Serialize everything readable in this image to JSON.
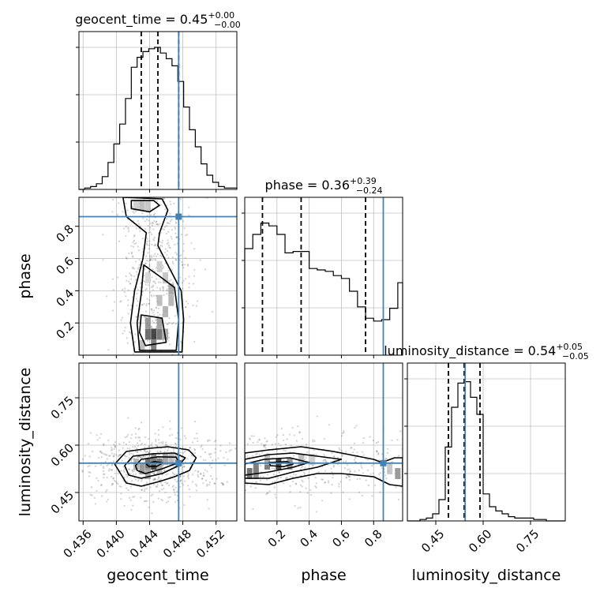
{
  "chart_data": {
    "type": "corner",
    "colors": {
      "truth": "#4682b4",
      "hist": "#000000",
      "grid": "#c0c0c0",
      "quantile": "#000000"
    },
    "parameters": [
      {
        "name": "geocent_time",
        "xlabel": "geocent_time",
        "ylabel": "",
        "title_main": "geocent_time = 0.45",
        "title_plus": "+0.00",
        "title_minus": "−0.00",
        "range": [
          0.4355,
          0.4545
        ],
        "ticks": [
          0.436,
          0.44,
          0.444,
          0.448,
          0.452
        ],
        "tick_labels": [
          "0.436",
          "0.440",
          "0.444",
          "0.448",
          "0.452"
        ],
        "truth": 0.4475,
        "quantiles": [
          0.443,
          0.445,
          0.4475
        ],
        "hist_edges": [
          0.4355,
          0.4362,
          0.4369,
          0.4376,
          0.4383,
          0.439,
          0.4397,
          0.4404,
          0.4411,
          0.4418,
          0.4425,
          0.4432,
          0.4439,
          0.4446,
          0.4453,
          0.446,
          0.4467,
          0.4474,
          0.4481,
          0.4488,
          0.4495,
          0.4502,
          0.4509,
          0.4516,
          0.4523,
          0.453,
          0.4545
        ],
        "hist_values": [
          0,
          0.01,
          0.02,
          0.04,
          0.09,
          0.19,
          0.32,
          0.46,
          0.64,
          0.86,
          0.93,
          0.97,
          0.99,
          1.0,
          0.96,
          0.92,
          0.87,
          0.76,
          0.58,
          0.42,
          0.3,
          0.18,
          0.1,
          0.05,
          0.02,
          0.01
        ]
      },
      {
        "name": "phase",
        "xlabel": "phase",
        "ylabel": "phase",
        "title_main": "phase = 0.36",
        "title_plus": "+0.39",
        "title_minus": "−0.24",
        "range": [
          0.0,
          0.98
        ],
        "ticks": [
          0.2,
          0.4,
          0.6,
          0.8
        ],
        "tick_labels": [
          "0.2",
          "0.4",
          "0.6",
          "0.8"
        ],
        "truth": 0.86,
        "quantiles": [
          0.11,
          0.35,
          0.75
        ],
        "hist_edges": [
          0.0,
          0.05,
          0.1,
          0.15,
          0.2,
          0.25,
          0.3,
          0.35,
          0.4,
          0.45,
          0.5,
          0.55,
          0.6,
          0.65,
          0.7,
          0.75,
          0.8,
          0.85,
          0.9,
          0.95,
          0.98
        ],
        "hist_values": [
          0.75,
          0.85,
          0.93,
          0.91,
          0.85,
          0.72,
          0.73,
          0.73,
          0.61,
          0.6,
          0.59,
          0.56,
          0.54,
          0.45,
          0.34,
          0.26,
          0.24,
          0.25,
          0.33,
          0.51
        ]
      },
      {
        "name": "luminosity_distance",
        "xlabel": "luminosity_distance",
        "ylabel": "luminosity_distance",
        "title_main": "luminosity_distance = 0.54",
        "title_plus": "+0.05",
        "title_minus": "−0.05",
        "range": [
          0.36,
          0.86
        ],
        "ticks": [
          0.45,
          0.6,
          0.75
        ],
        "tick_labels": [
          "0.45",
          "0.60",
          "0.75"
        ],
        "truth": 0.543,
        "quantiles": [
          0.49,
          0.54,
          0.59
        ],
        "hist_edges": [
          0.36,
          0.38,
          0.4,
          0.42,
          0.44,
          0.46,
          0.48,
          0.5,
          0.52,
          0.54,
          0.56,
          0.58,
          0.6,
          0.62,
          0.64,
          0.66,
          0.68,
          0.7,
          0.72,
          0.74,
          0.76,
          0.78,
          0.8,
          0.82,
          0.86
        ],
        "hist_values": [
          0,
          0,
          0.01,
          0.02,
          0.05,
          0.15,
          0.52,
          0.8,
          0.97,
          0.98,
          0.87,
          0.75,
          0.19,
          0.1,
          0.07,
          0.05,
          0.03,
          0.02,
          0.02,
          0.02,
          0.01,
          0.01,
          0,
          0
        ]
      }
    ],
    "contours_2d": [
      {
        "x_param": "geocent_time",
        "y_param": "phase",
        "levels": [
          [
            [
              0.4418,
              0.96
            ],
            [
              0.4445,
              0.96
            ],
            [
              0.4452,
              0.93
            ],
            [
              0.444,
              0.89
            ],
            [
              0.4418,
              0.91
            ]
          ],
          [
            [
              0.4408,
              0.98
            ],
            [
              0.4455,
              0.97
            ],
            [
              0.4462,
              0.9
            ],
            [
              0.4452,
              0.76
            ],
            [
              0.445,
              0.68
            ],
            [
              0.4462,
              0.56
            ],
            [
              0.4478,
              0.4
            ],
            [
              0.4481,
              0.22
            ],
            [
              0.4479,
              0.02
            ],
            [
              0.4422,
              0.02
            ],
            [
              0.4417,
              0.2
            ],
            [
              0.4422,
              0.4
            ],
            [
              0.4432,
              0.6
            ],
            [
              0.4436,
              0.76
            ],
            [
              0.4412,
              0.86
            ]
          ],
          [
            [
              0.4433,
              0.56
            ],
            [
              0.4452,
              0.49
            ],
            [
              0.447,
              0.42
            ],
            [
              0.4475,
              0.22
            ],
            [
              0.4472,
              0.03
            ],
            [
              0.4428,
              0.03
            ],
            [
              0.4425,
              0.2
            ],
            [
              0.443,
              0.38
            ]
          ],
          [
            [
              0.443,
              0.25
            ],
            [
              0.4455,
              0.23
            ],
            [
              0.446,
              0.08
            ],
            [
              0.4435,
              0.06
            ],
            [
              0.4428,
              0.14
            ]
          ]
        ],
        "density_cells": [
          {
            "x": 0.4445,
            "y": 0.13,
            "v": 1.0
          },
          {
            "x": 0.4438,
            "y": 0.13,
            "v": 0.78
          },
          {
            "x": 0.4452,
            "y": 0.13,
            "v": 0.72
          },
          {
            "x": 0.4445,
            "y": 0.06,
            "v": 0.7
          },
          {
            "x": 0.4438,
            "y": 0.2,
            "v": 0.55
          },
          {
            "x": 0.4452,
            "y": 0.2,
            "v": 0.5
          },
          {
            "x": 0.4459,
            "y": 0.13,
            "v": 0.45
          },
          {
            "x": 0.4459,
            "y": 0.27,
            "v": 0.4
          },
          {
            "x": 0.4466,
            "y": 0.34,
            "v": 0.38
          },
          {
            "x": 0.4466,
            "y": 0.41,
            "v": 0.45
          },
          {
            "x": 0.4459,
            "y": 0.48,
            "v": 0.3
          },
          {
            "x": 0.4452,
            "y": 0.34,
            "v": 0.35
          },
          {
            "x": 0.4431,
            "y": 0.06,
            "v": 0.35
          },
          {
            "x": 0.4438,
            "y": 0.48,
            "v": 0.2
          },
          {
            "x": 0.4452,
            "y": 0.55,
            "v": 0.25
          },
          {
            "x": 0.4431,
            "y": 0.93,
            "v": 0.35
          },
          {
            "x": 0.4438,
            "y": 0.93,
            "v": 0.3
          },
          {
            "x": 0.4424,
            "y": 0.93,
            "v": 0.25
          }
        ]
      },
      {
        "x_param": "geocent_time",
        "y_param": "luminosity_distance",
        "levels": [
          [
            [
              0.4398,
              0.54
            ],
            [
              0.4412,
              0.58
            ],
            [
              0.444,
              0.59
            ],
            [
              0.4462,
              0.595
            ],
            [
              0.4487,
              0.585
            ],
            [
              0.4496,
              0.56
            ],
            [
              0.4488,
              0.52
            ],
            [
              0.447,
              0.5
            ],
            [
              0.4452,
              0.485
            ],
            [
              0.443,
              0.47
            ],
            [
              0.4412,
              0.48
            ]
          ],
          [
            [
              0.441,
              0.535
            ],
            [
              0.442,
              0.565
            ],
            [
              0.4445,
              0.573
            ],
            [
              0.447,
              0.575
            ],
            [
              0.4483,
              0.56
            ],
            [
              0.4475,
              0.535
            ],
            [
              0.4455,
              0.51
            ],
            [
              0.443,
              0.495
            ],
            [
              0.4415,
              0.505
            ]
          ],
          [
            [
              0.4423,
              0.535
            ],
            [
              0.443,
              0.555
            ],
            [
              0.445,
              0.563
            ],
            [
              0.4472,
              0.562
            ],
            [
              0.4475,
              0.545
            ],
            [
              0.4455,
              0.525
            ],
            [
              0.4435,
              0.51
            ],
            [
              0.4425,
              0.52
            ]
          ],
          [
            [
              0.4436,
              0.54
            ],
            [
              0.4446,
              0.548
            ],
            [
              0.4456,
              0.544
            ],
            [
              0.4449,
              0.533
            ],
            [
              0.4439,
              0.533
            ]
          ]
        ],
        "density_cells": [
          {
            "x": 0.4445,
            "y": 0.54,
            "v": 1.0
          },
          {
            "x": 0.4438,
            "y": 0.54,
            "v": 0.75
          },
          {
            "x": 0.4452,
            "y": 0.54,
            "v": 0.7
          },
          {
            "x": 0.4459,
            "y": 0.555,
            "v": 0.45
          },
          {
            "x": 0.4466,
            "y": 0.555,
            "v": 0.35
          },
          {
            "x": 0.4431,
            "y": 0.525,
            "v": 0.55
          },
          {
            "x": 0.4438,
            "y": 0.51,
            "v": 0.45
          },
          {
            "x": 0.4452,
            "y": 0.525,
            "v": 0.35
          },
          {
            "x": 0.4424,
            "y": 0.54,
            "v": 0.4
          },
          {
            "x": 0.4473,
            "y": 0.555,
            "v": 0.3
          },
          {
            "x": 0.4445,
            "y": 0.555,
            "v": 0.55
          }
        ]
      },
      {
        "x_param": "phase",
        "y_param": "luminosity_distance",
        "levels": [
          [
            [
              0.0,
              0.575
            ],
            [
              0.15,
              0.585
            ],
            [
              0.35,
              0.595
            ],
            [
              0.55,
              0.58
            ],
            [
              0.7,
              0.565
            ],
            [
              0.8,
              0.555
            ],
            [
              0.85,
              0.545
            ],
            [
              0.93,
              0.56
            ],
            [
              0.98,
              0.56
            ],
            [
              0.98,
              0.47
            ],
            [
              0.9,
              0.475
            ],
            [
              0.8,
              0.5
            ],
            [
              0.6,
              0.51
            ],
            [
              0.45,
              0.51
            ],
            [
              0.3,
              0.495
            ],
            [
              0.15,
              0.475
            ],
            [
              0.0,
              0.48
            ]
          ],
          [
            [
              0.0,
              0.555
            ],
            [
              0.15,
              0.57
            ],
            [
              0.3,
              0.575
            ],
            [
              0.45,
              0.565
            ],
            [
              0.6,
              0.555
            ],
            [
              0.45,
              0.53
            ],
            [
              0.3,
              0.515
            ],
            [
              0.15,
              0.495
            ],
            [
              0.0,
              0.495
            ]
          ],
          [
            [
              0.0,
              0.54
            ],
            [
              0.12,
              0.555
            ],
            [
              0.28,
              0.56
            ],
            [
              0.4,
              0.545
            ],
            [
              0.3,
              0.53
            ],
            [
              0.15,
              0.515
            ],
            [
              0.0,
              0.505
            ]
          ],
          [
            [
              0.15,
              0.545
            ],
            [
              0.26,
              0.548
            ],
            [
              0.3,
              0.54
            ],
            [
              0.24,
              0.532
            ],
            [
              0.16,
              0.535
            ]
          ]
        ],
        "density_cells": [
          {
            "x": 0.21,
            "y": 0.54,
            "v": 1.0
          },
          {
            "x": 0.14,
            "y": 0.54,
            "v": 0.7
          },
          {
            "x": 0.07,
            "y": 0.525,
            "v": 0.7
          },
          {
            "x": 0.03,
            "y": 0.51,
            "v": 0.75
          },
          {
            "x": 0.28,
            "y": 0.54,
            "v": 0.55
          },
          {
            "x": 0.35,
            "y": 0.555,
            "v": 0.35
          },
          {
            "x": 0.42,
            "y": 0.555,
            "v": 0.25
          },
          {
            "x": 0.14,
            "y": 0.555,
            "v": 0.35
          },
          {
            "x": 0.07,
            "y": 0.51,
            "v": 0.6
          },
          {
            "x": 0.95,
            "y": 0.51,
            "v": 0.55
          },
          {
            "x": 0.9,
            "y": 0.525,
            "v": 0.3
          }
        ]
      }
    ]
  }
}
